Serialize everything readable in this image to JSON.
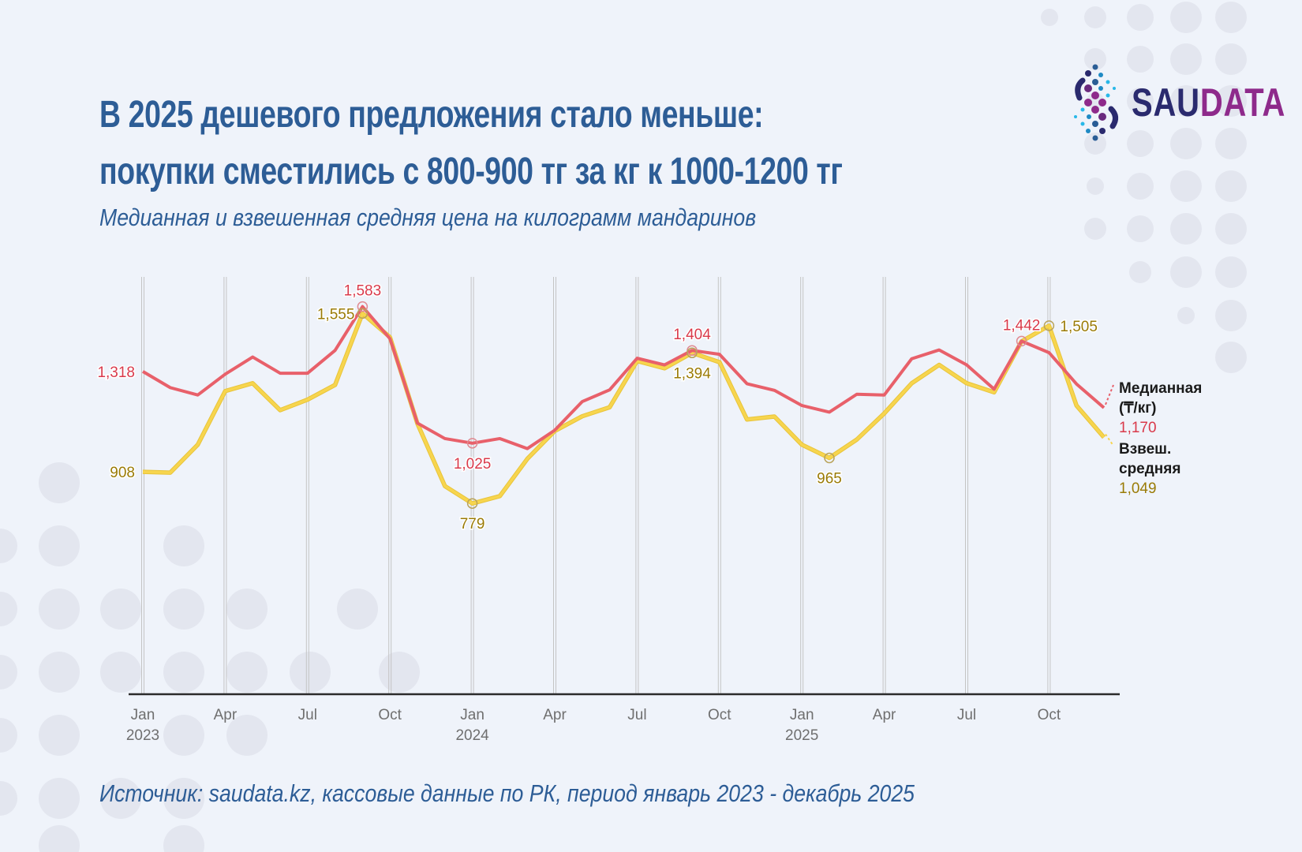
{
  "title_line1": "В 2025 дешевого предложения стало меньше:",
  "title_line2": "покупки сместились с 800-900 тг за кг к 1000-1200 тг",
  "subtitle": "Медианная и взвешенная средняя цена на килограмм мандаринов",
  "source": "Источник: saudata.kz, кассовые данные по РК, период январь 2023 - декабрь 2025",
  "logo": {
    "part1": "SAU",
    "part2": "DATA"
  },
  "colors": {
    "background": "#eff3fa",
    "title": "#2d5d96",
    "median": "#e8606a",
    "weighted": "#f7d54e",
    "median_label": "#d93a4b",
    "weighted_label": "#9a7b06"
  },
  "chart_data": {
    "type": "line",
    "title": "",
    "xlabel": "",
    "ylabel": "",
    "ylim": [
      0,
      1583
    ],
    "grid": "vertical quarterly",
    "legend": "right end labels",
    "x_start": "2023-01",
    "x": [
      "2023-01",
      "2023-02",
      "2023-03",
      "2023-04",
      "2023-05",
      "2023-06",
      "2023-07",
      "2023-08",
      "2023-09",
      "2023-10",
      "2023-11",
      "2023-12",
      "2024-01",
      "2024-02",
      "2024-03",
      "2024-04",
      "2024-05",
      "2024-06",
      "2024-07",
      "2024-08",
      "2024-09",
      "2024-10",
      "2024-11",
      "2024-12",
      "2025-01",
      "2025-02",
      "2025-03",
      "2025-04",
      "2025-05",
      "2025-06",
      "2025-07",
      "2025-08",
      "2025-09",
      "2025-10",
      "2025-11",
      "2025-12"
    ],
    "x_ticks": [
      {
        "month": "Jan",
        "year": "2023",
        "index": 0
      },
      {
        "month": "Apr",
        "year": "",
        "index": 3
      },
      {
        "month": "Jul",
        "year": "",
        "index": 6
      },
      {
        "month": "Oct",
        "year": "",
        "index": 9
      },
      {
        "month": "Jan",
        "year": "2024",
        "index": 12
      },
      {
        "month": "Apr",
        "year": "",
        "index": 15
      },
      {
        "month": "Jul",
        "year": "",
        "index": 18
      },
      {
        "month": "Oct",
        "year": "",
        "index": 21
      },
      {
        "month": "Jan",
        "year": "2025",
        "index": 24
      },
      {
        "month": "Apr",
        "year": "",
        "index": 27
      },
      {
        "month": "Jul",
        "year": "",
        "index": 30
      },
      {
        "month": "Oct",
        "year": "",
        "index": 33
      }
    ],
    "series": [
      {
        "name": "Медианная (₸/кг)",
        "name_lines": [
          "Медианная",
          "(₸/кг)"
        ],
        "end_label": "1,170",
        "values": [
          1318,
          1252,
          1222,
          1307,
          1377,
          1311,
          1311,
          1404,
          1583,
          1452,
          1107,
          1044,
          1025,
          1044,
          1003,
          1078,
          1195,
          1243,
          1372,
          1345,
          1404,
          1388,
          1268,
          1241,
          1179,
          1152,
          1225,
          1222,
          1370,
          1406,
          1345,
          1246,
          1442,
          1395,
          1267,
          1170
        ],
        "annotations": [
          {
            "index": 0,
            "label": "1,318",
            "pos": "left"
          },
          {
            "index": 8,
            "label": "1,583",
            "pos": "above"
          },
          {
            "index": 12,
            "label": "1,025",
            "pos": "below"
          },
          {
            "index": 20,
            "label": "1,404",
            "pos": "above"
          },
          {
            "index": 32,
            "label": "1,442",
            "pos": "above"
          }
        ]
      },
      {
        "name": "Взвеш. средняя",
        "name_lines": [
          "Взвеш.",
          "средняя"
        ],
        "end_label": "1,049",
        "values": [
          908,
          905,
          1019,
          1238,
          1270,
          1160,
          1203,
          1263,
          1555,
          1458,
          1105,
          850,
          779,
          809,
          961,
          1075,
          1135,
          1172,
          1361,
          1331,
          1394,
          1356,
          1122,
          1134,
          1019,
          965,
          1040,
          1147,
          1270,
          1345,
          1270,
          1233,
          1441,
          1505,
          1179,
          1049
        ],
        "annotations": [
          {
            "index": 0,
            "label": "908",
            "pos": "left"
          },
          {
            "index": 8,
            "label": "1,555",
            "pos": "left"
          },
          {
            "index": 12,
            "label": "779",
            "pos": "below"
          },
          {
            "index": 20,
            "label": "1,394",
            "pos": "below"
          },
          {
            "index": 25,
            "label": "965",
            "pos": "below"
          },
          {
            "index": 33,
            "label": "1,505",
            "pos": "right"
          }
        ]
      }
    ]
  }
}
